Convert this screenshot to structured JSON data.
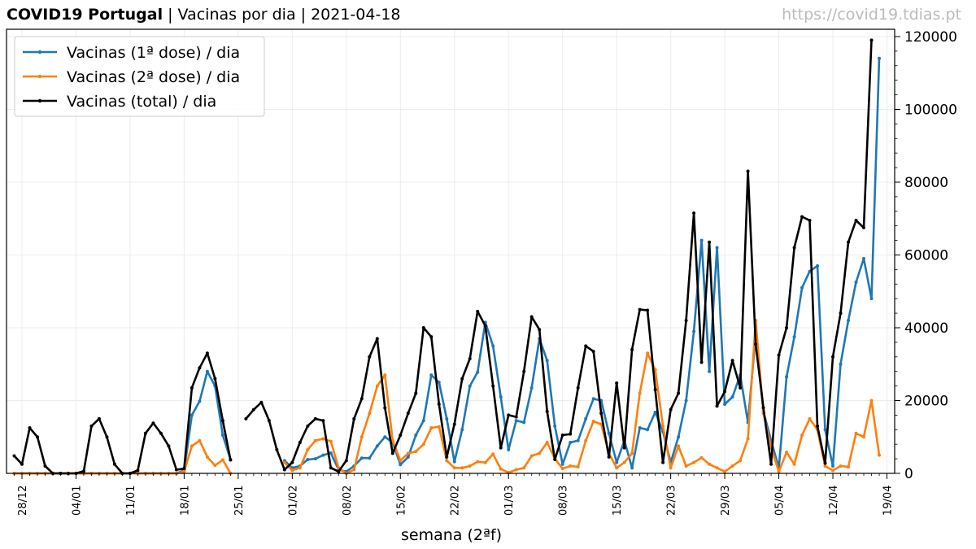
{
  "header": {
    "title_bold": "COVID19 Portugal",
    "title_rest": " | Vacinas por dia | 2021-04-18",
    "source": "https://covid19.tdias.pt"
  },
  "chart_data": {
    "type": "line",
    "title": "COVID19 Portugal | Vacinas por dia | 2021-04-18",
    "xlabel": "semana (2ªf)",
    "ylabel": "",
    "ylim": [
      0,
      122000
    ],
    "y_axis_side": "right",
    "y_ticks": [
      0,
      20000,
      40000,
      60000,
      80000,
      100000,
      120000
    ],
    "x_tick_labels": [
      "28/12",
      "04/01",
      "11/01",
      "18/01",
      "25/01",
      "01/02",
      "08/02",
      "15/02",
      "22/02",
      "01/03",
      "08/03",
      "15/03",
      "22/03",
      "29/03",
      "05/04",
      "12/04",
      "19/04"
    ],
    "x_range": [
      "2020-12-26",
      "2021-04-20"
    ],
    "x_start_date": "2020-12-27",
    "grid": true,
    "legend_position": "top-left",
    "series": [
      {
        "name": "Vacinas (1ª dose) / dia",
        "color": "#1f77b4",
        "values": [
          0,
          0,
          0,
          0,
          0,
          0,
          0,
          0,
          0,
          0,
          0,
          0,
          0,
          0,
          0,
          0,
          0,
          0,
          0,
          0,
          0,
          0,
          800,
          16000,
          19800,
          28000,
          24000,
          10500,
          3800,
          null,
          null,
          null,
          null,
          null,
          null,
          3500,
          1500,
          2000,
          3800,
          4000,
          5000,
          5600,
          1000,
          500,
          2000,
          4200,
          4200,
          7500,
          10000,
          8500,
          2400,
          4500,
          10500,
          14500,
          27000,
          25000,
          15000,
          3200,
          12000,
          24000,
          27800,
          41500,
          35000,
          21000,
          6500,
          14500,
          14000,
          23500,
          37000,
          31000,
          13000,
          2500,
          8500,
          9000,
          15000,
          20500,
          20000,
          11000,
          3000,
          9000,
          1500,
          12500,
          12000,
          16800,
          11500,
          3000,
          10000,
          20000,
          39000,
          64000,
          28000,
          62000,
          19000,
          21000,
          27000,
          14000,
          38000,
          17000,
          9000,
          1500,
          26500,
          37500,
          51000,
          55500,
          57000,
          12000,
          2000,
          30000,
          42000,
          52500,
          59000,
          48000,
          114000
        ],
        "marker": true
      },
      {
        "name": "Vacinas (2ª dose) / dia",
        "color": "#ff7f0e",
        "values": [
          0,
          0,
          0,
          0,
          0,
          0,
          0,
          0,
          0,
          0,
          0,
          0,
          0,
          0,
          0,
          0,
          0,
          0,
          0,
          0,
          0,
          0,
          500,
          7500,
          9000,
          4500,
          2200,
          3700,
          0,
          null,
          null,
          null,
          null,
          null,
          null,
          3000,
          800,
          1500,
          6500,
          9000,
          9500,
          8800,
          1500,
          0,
          1000,
          10000,
          16500,
          24000,
          27000,
          9000,
          3500,
          5500,
          6000,
          8000,
          12500,
          12800,
          3500,
          1500,
          1500,
          2000,
          3200,
          3000,
          5300,
          1200,
          200,
          1000,
          1500,
          4800,
          5500,
          8500,
          4000,
          1300,
          2000,
          1800,
          9000,
          14300,
          13500,
          5500,
          1500,
          3000,
          5500,
          22000,
          33000,
          28500,
          13000,
          1500,
          7500,
          2000,
          3000,
          4300,
          2500,
          1500,
          500,
          2000,
          3500,
          9500,
          42000,
          16500,
          7000,
          500,
          5800,
          2500,
          10500,
          15000,
          12000,
          2000,
          800,
          2000,
          1800,
          11000,
          10000,
          20000,
          5000
        ],
        "marker": true
      },
      {
        "name": "Vacinas (total) / dia",
        "color": "#000000",
        "values": [
          4800,
          2500,
          12500,
          10000,
          2000,
          0,
          0,
          0,
          0,
          600,
          13000,
          15000,
          10000,
          2500,
          0,
          0,
          800,
          11000,
          13800,
          11000,
          7500,
          1000,
          1300,
          23500,
          29000,
          33000,
          26000,
          14500,
          3700,
          null,
          15000,
          17500,
          19500,
          14500,
          6500,
          1000,
          3000,
          8500,
          13000,
          15000,
          14500,
          1500,
          500,
          3500,
          15000,
          20500,
          32000,
          37000,
          18000,
          5500,
          10500,
          16500,
          22000,
          40000,
          37500,
          19000,
          4500,
          13500,
          26000,
          31500,
          44500,
          40500,
          24000,
          7000,
          16000,
          15500,
          28000,
          43000,
          39500,
          17000,
          3800,
          10500,
          10800,
          23500,
          35000,
          33500,
          16500,
          4500,
          24800,
          7000,
          34000,
          45000,
          44800,
          23000,
          3000,
          17500,
          22000,
          42000,
          71500,
          30500,
          63500,
          18500,
          22500,
          31000,
          23500,
          83000,
          35500,
          18000,
          2500,
          32500,
          40000,
          62000,
          70500,
          69500,
          13000,
          2800,
          32000,
          44000,
          63500,
          69500,
          67500,
          119000
        ],
        "marker": true
      }
    ]
  }
}
